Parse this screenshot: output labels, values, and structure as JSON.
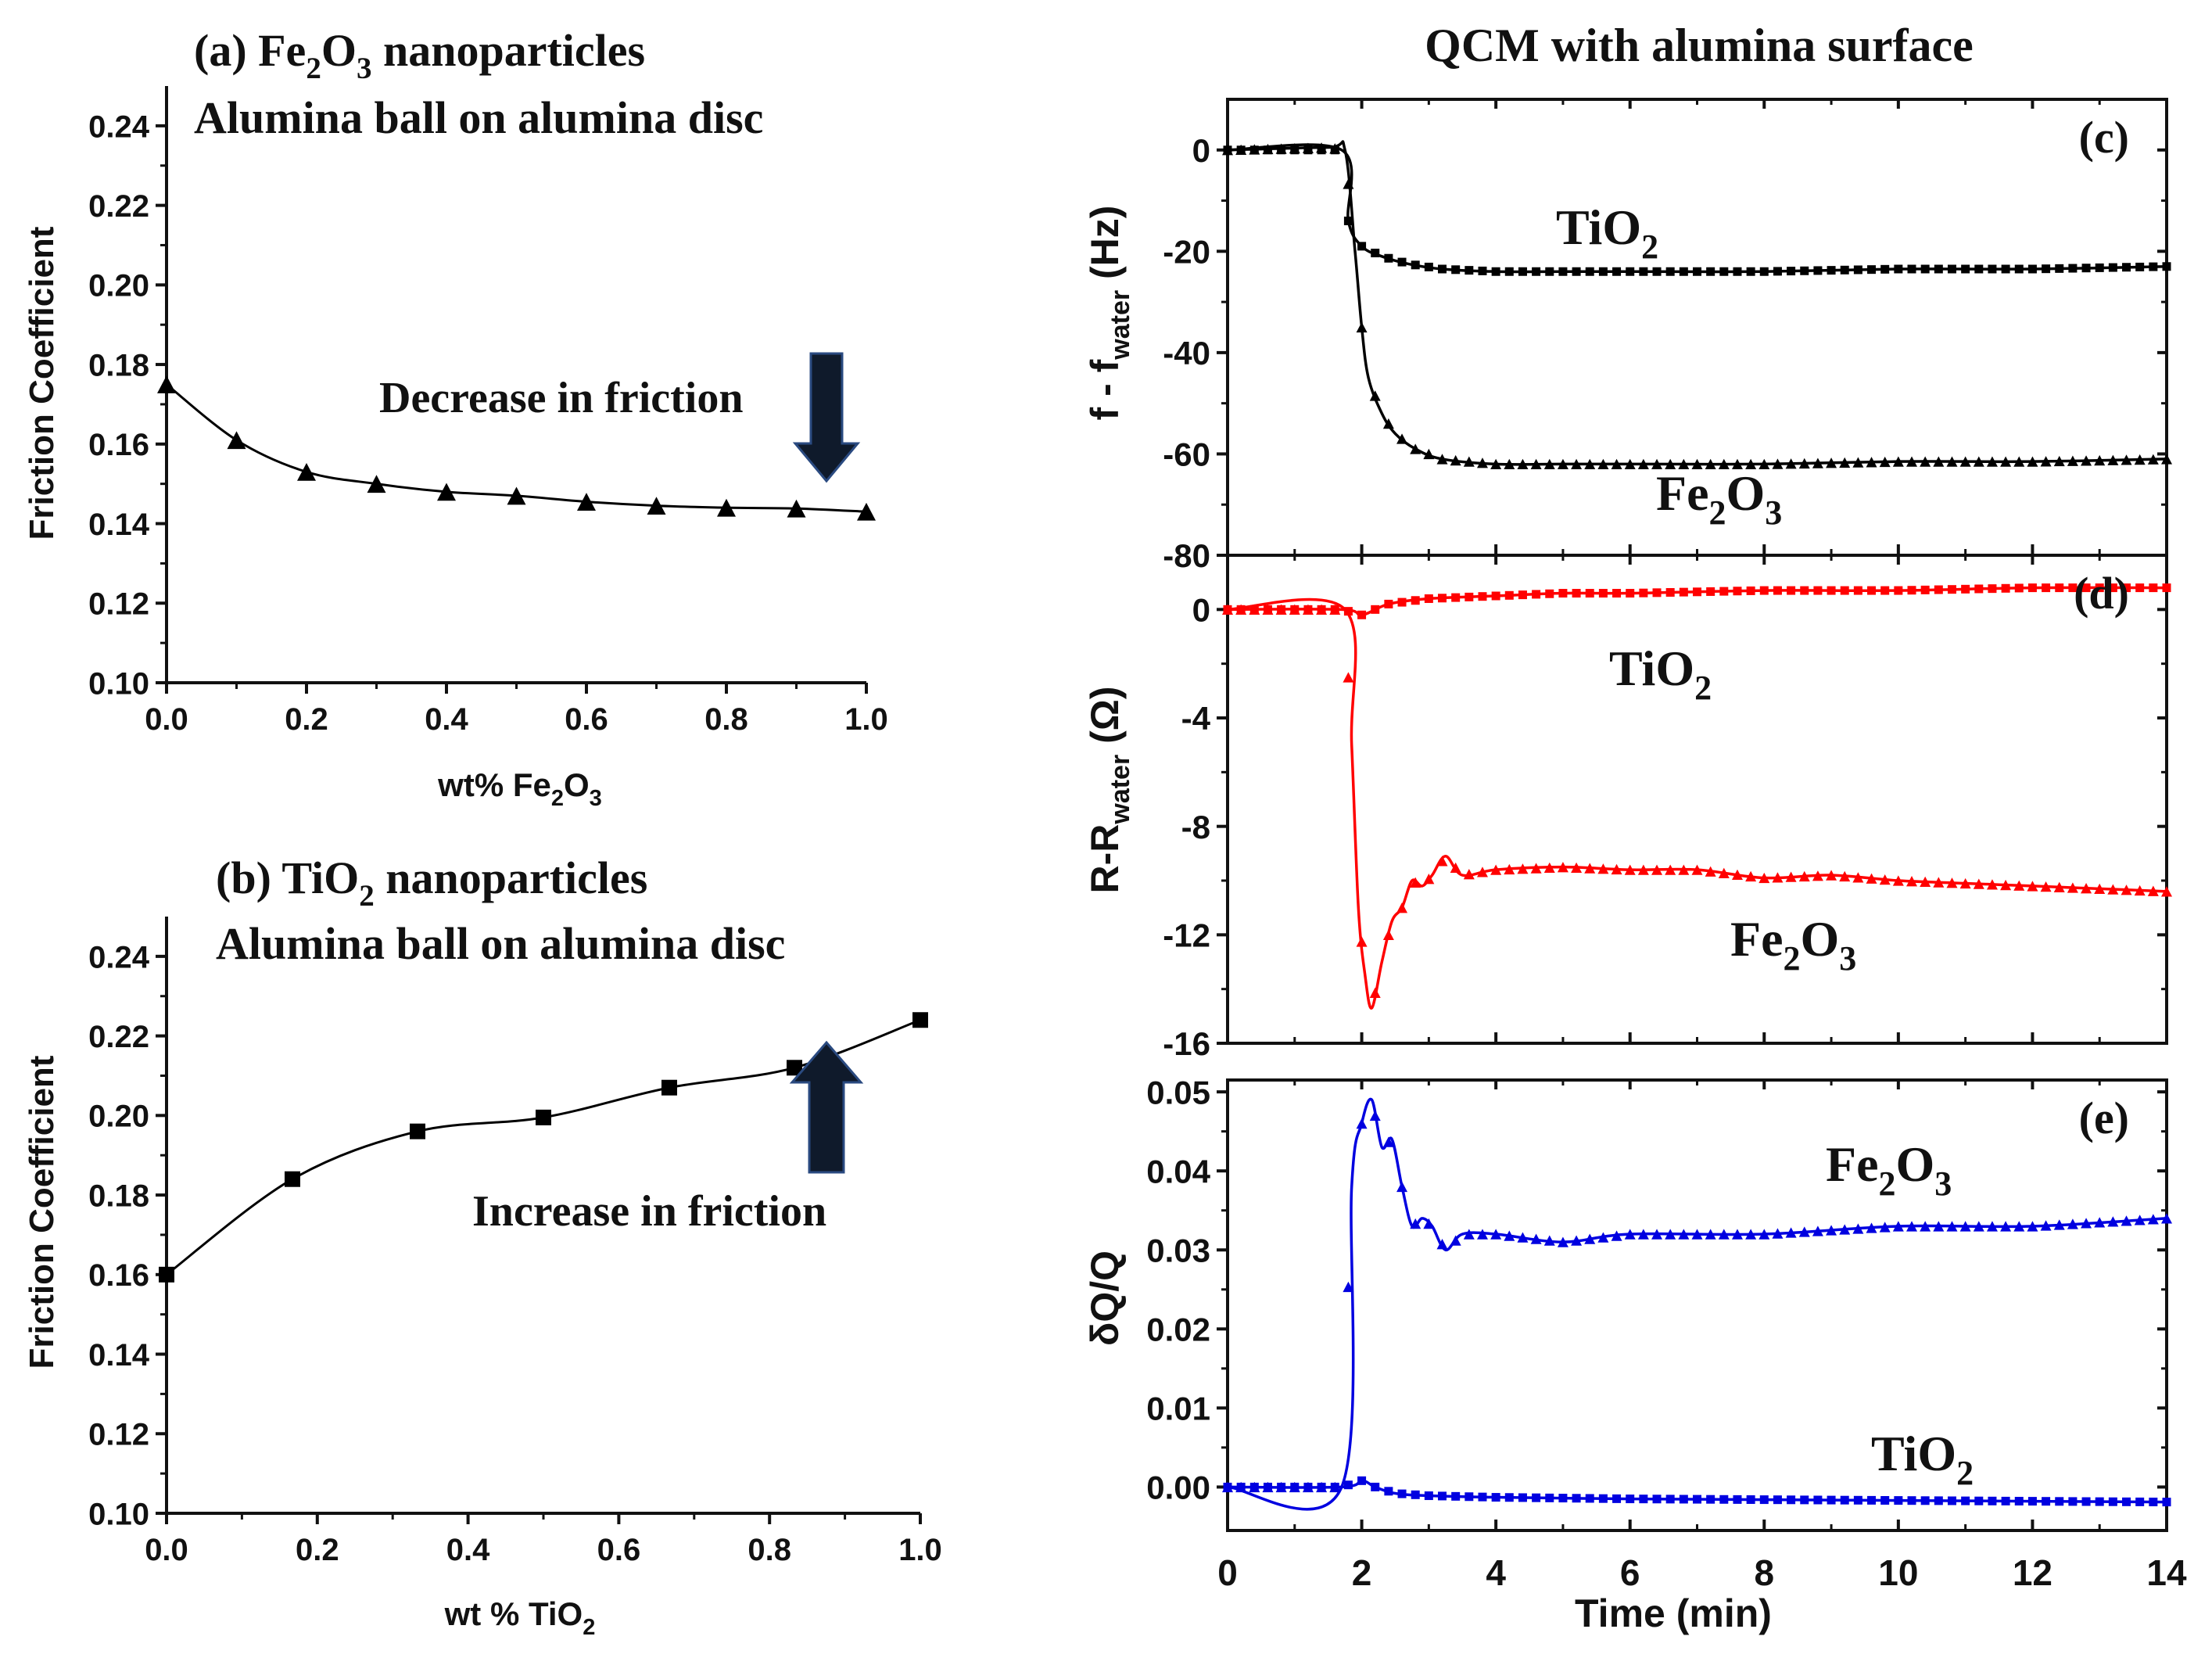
{
  "figure": {
    "header_title": "QCM with alumina surface"
  },
  "chart_data": [
    {
      "id": "a",
      "type": "scatter",
      "panel_title_line1": {
        "pre": "(a) Fe",
        "sub1": "2",
        "mid": "O",
        "sub2": "3",
        "post": " nanoparticles"
      },
      "panel_title_line2": "Alumina ball on alumina disc",
      "ylabel": "Friction Coefficient",
      "xlabel": {
        "pre": "wt% Fe",
        "sub1": "2",
        "mid": "O",
        "sub2": "3"
      },
      "xlim": [
        0,
        1.0
      ],
      "ylim": [
        0.1,
        0.25
      ],
      "xticks": [
        "0.0",
        "0.2",
        "0.4",
        "0.6",
        "0.8",
        "1.0"
      ],
      "yticks": [
        "0.10",
        "0.12",
        "0.14",
        "0.16",
        "0.18",
        "0.20",
        "0.22",
        "0.24"
      ],
      "marker": "triangle",
      "color": "#000000",
      "x": [
        0.0,
        0.1,
        0.2,
        0.3,
        0.4,
        0.5,
        0.6,
        0.7,
        0.8,
        0.9,
        1.0
      ],
      "y": [
        0.175,
        0.161,
        0.153,
        0.15,
        0.148,
        0.147,
        0.1455,
        0.1445,
        0.144,
        0.1438,
        0.143
      ],
      "annotation": "Decrease in friction",
      "arrow": "down"
    },
    {
      "id": "b",
      "type": "scatter",
      "panel_title_line1": {
        "pre": "(b) TiO",
        "sub1": "2",
        "post": " nanoparticles"
      },
      "panel_title_line2": "Alumina ball on alumina disc",
      "ylabel": "Friction Coefficient",
      "xlabel": {
        "pre": "wt % TiO",
        "sub1": "2"
      },
      "xlim": [
        0,
        1.0
      ],
      "ylim": [
        0.1,
        0.25
      ],
      "xticks": [
        "0.0",
        "0.2",
        "0.4",
        "0.6",
        "0.8",
        "1.0"
      ],
      "yticks": [
        "0.10",
        "0.12",
        "0.14",
        "0.16",
        "0.18",
        "0.20",
        "0.22",
        "0.24"
      ],
      "marker": "square",
      "color": "#000000",
      "x": [
        0.0,
        0.167,
        0.333,
        0.5,
        0.667,
        0.833,
        1.0
      ],
      "y": [
        0.16,
        0.184,
        0.196,
        0.1995,
        0.207,
        0.212,
        0.224
      ],
      "annotation": "Increase in friction",
      "arrow": "up"
    },
    {
      "id": "c",
      "type": "line",
      "panel_label": "(c)",
      "ylabel": {
        "pre": "f - f",
        "sub": "water",
        "post": " (Hz)"
      },
      "xlim": [
        0,
        14
      ],
      "ylim": [
        -80,
        10
      ],
      "yticks": [
        "0",
        "-20",
        "-40",
        "-60",
        "-80"
      ],
      "series": [
        {
          "name": "TiO2",
          "label": {
            "pre": "TiO",
            "sub1": "2"
          },
          "marker": "square",
          "color": "#000000",
          "x": [
            0,
            1.7,
            1.8,
            2.0,
            2.3,
            2.7,
            3.2,
            4,
            5,
            6,
            8,
            10,
            12,
            14
          ],
          "y": [
            0,
            0,
            -14,
            -19,
            -21,
            -22.5,
            -23.5,
            -24,
            -24,
            -24,
            -24,
            -23.5,
            -23.5,
            -23
          ]
        },
        {
          "name": "Fe2O3",
          "label": {
            "pre": "Fe",
            "sub1": "2",
            "mid": "O",
            "sub2": "3"
          },
          "marker": "triangle",
          "color": "#000000",
          "x": [
            0,
            1.5,
            1.75,
            1.9,
            2.0,
            2.1,
            2.3,
            2.5,
            2.8,
            3.2,
            4,
            5,
            6,
            8,
            10,
            12,
            14
          ],
          "y": [
            0,
            0.5,
            0,
            -20,
            -35,
            -45,
            -52,
            -56,
            -59,
            -61,
            -62,
            -62,
            -62,
            -62,
            -61.5,
            -61.5,
            -61
          ]
        }
      ]
    },
    {
      "id": "d",
      "type": "line",
      "panel_label": "(d)",
      "ylabel": {
        "pre": "R-R",
        "sub": "water",
        "post": " (Ω)"
      },
      "xlim": [
        0,
        14
      ],
      "ylim": [
        -16,
        2
      ],
      "yticks": [
        "0",
        "-4",
        "-8",
        "-12",
        "-16"
      ],
      "series": [
        {
          "name": "TiO2",
          "label": {
            "pre": "TiO",
            "sub1": "2"
          },
          "marker": "square",
          "color": "#ff0000",
          "x": [
            0,
            1.7,
            2.0,
            2.4,
            3,
            4,
            5,
            6,
            8,
            10,
            12,
            14
          ],
          "y": [
            0,
            0,
            -0.2,
            0.2,
            0.4,
            0.5,
            0.6,
            0.6,
            0.7,
            0.7,
            0.8,
            0.8
          ]
        },
        {
          "name": "Fe2O3",
          "label": {
            "pre": "Fe",
            "sub1": "2",
            "mid": "O",
            "sub2": "3"
          },
          "marker": "triangle",
          "color": "#ff0000",
          "x": [
            0,
            1.75,
            1.85,
            1.95,
            2.05,
            2.15,
            2.3,
            2.45,
            2.6,
            2.75,
            2.9,
            3.05,
            3.25,
            3.5,
            4,
            5,
            6,
            7,
            8,
            9,
            10,
            11,
            12,
            13,
            14
          ],
          "y": [
            0,
            0,
            -5,
            -11,
            -13.5,
            -14.7,
            -13,
            -11.5,
            -11,
            -10,
            -10.2,
            -9.8,
            -9.1,
            -9.8,
            -9.6,
            -9.5,
            -9.6,
            -9.6,
            -9.9,
            -9.8,
            -10,
            -10.1,
            -10.2,
            -10.3,
            -10.4
          ]
        }
      ]
    },
    {
      "id": "e",
      "type": "line",
      "panel_label": "(e)",
      "ylabel": "δQ/Q",
      "xlabel": "Time (min)",
      "xlim": [
        0,
        14
      ],
      "ylim": [
        -0.0055,
        0.0515
      ],
      "xticks": [
        "0",
        "2",
        "4",
        "6",
        "8",
        "10",
        "12",
        "14"
      ],
      "yticks": [
        "0.00",
        "0.01",
        "0.02",
        "0.03",
        "0.04",
        "0.05"
      ],
      "series": [
        {
          "name": "Fe2O3",
          "label": {
            "pre": "Fe",
            "sub1": "2",
            "mid": "O",
            "sub2": "3"
          },
          "marker": "triangle",
          "color": "#0000e0",
          "x": [
            0,
            1.7,
            1.85,
            2.0,
            2.15,
            2.3,
            2.45,
            2.6,
            2.75,
            2.9,
            3.05,
            3.25,
            3.5,
            4,
            5,
            6,
            8,
            10,
            12,
            14
          ],
          "y": [
            0,
            0,
            0.038,
            0.046,
            0.049,
            0.043,
            0.044,
            0.038,
            0.033,
            0.034,
            0.033,
            0.03,
            0.032,
            0.032,
            0.031,
            0.032,
            0.032,
            0.033,
            0.033,
            0.034
          ]
        },
        {
          "name": "TiO2",
          "label": {
            "pre": "TiO",
            "sub1": "2"
          },
          "marker": "square",
          "color": "#0000e0",
          "x": [
            0,
            1.7,
            2.0,
            2.2,
            2.5,
            3,
            4,
            6,
            8,
            10,
            12,
            14
          ],
          "y": [
            0,
            0,
            0.0008,
            0.0,
            -0.0008,
            -0.0011,
            -0.0013,
            -0.0015,
            -0.0016,
            -0.0017,
            -0.0018,
            -0.0019
          ]
        }
      ]
    }
  ]
}
